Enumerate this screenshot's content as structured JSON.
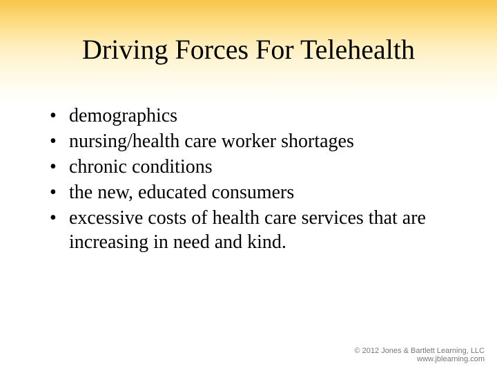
{
  "slide": {
    "title": "Driving Forces For Telehealth",
    "title_fontsize": 40,
    "title_color": "#000000",
    "background_gradient": {
      "top_color": "#f7c64a",
      "mid_color": "#ffeebb",
      "bottom_color": "#ffffff"
    },
    "bullets": [
      "demographics",
      "nursing/health care worker shortages",
      "chronic conditions",
      "the new, educated consumers",
      "excessive costs of health care services that are increasing in need and kind."
    ],
    "bullet_fontsize": 28,
    "bullet_color": "#000000",
    "footer": {
      "line1": "© 2012 Jones & Bartlett Learning, LLC",
      "line2": "www.jblearning.com",
      "fontsize": 11,
      "color": "#777777"
    }
  }
}
